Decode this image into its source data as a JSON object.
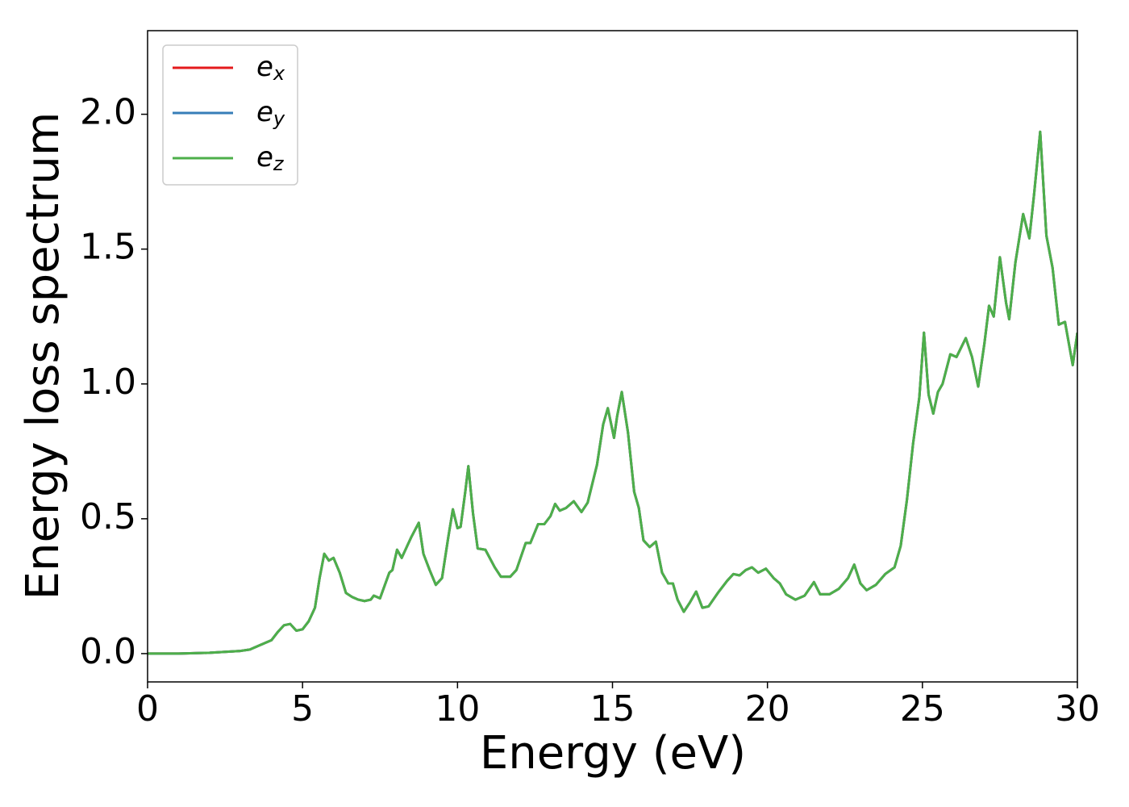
{
  "chart_data": {
    "type": "line",
    "xlabel": "Energy (eV)",
    "ylabel": "Energy loss spectrum",
    "x": [
      0,
      1,
      2,
      3,
      3.3,
      3.6,
      4.0,
      4.2,
      4.4,
      4.6,
      4.8,
      5.0,
      5.2,
      5.4,
      5.55,
      5.7,
      5.85,
      6.0,
      6.2,
      6.4,
      6.6,
      6.8,
      7.0,
      7.2,
      7.3,
      7.5,
      7.8,
      7.9,
      8.05,
      8.2,
      8.5,
      8.75,
      8.9,
      9.1,
      9.3,
      9.5,
      9.7,
      9.85,
      10.0,
      10.1,
      10.25,
      10.35,
      10.5,
      10.65,
      10.9,
      11.2,
      11.4,
      11.7,
      11.9,
      12.2,
      12.35,
      12.6,
      12.8,
      13.0,
      13.15,
      13.3,
      13.5,
      13.75,
      14.0,
      14.2,
      14.5,
      14.7,
      14.85,
      15.05,
      15.15,
      15.3,
      15.5,
      15.7,
      15.85,
      16.0,
      16.2,
      16.4,
      16.6,
      16.8,
      16.95,
      17.1,
      17.3,
      17.5,
      17.7,
      17.9,
      18.1,
      18.4,
      18.7,
      18.9,
      19.1,
      19.3,
      19.5,
      19.7,
      19.95,
      20.2,
      20.4,
      20.6,
      20.9,
      21.2,
      21.5,
      21.7,
      22.0,
      22.3,
      22.6,
      22.8,
      23.0,
      23.2,
      23.5,
      23.8,
      24.1,
      24.3,
      24.5,
      24.7,
      24.9,
      25.05,
      25.2,
      25.35,
      25.5,
      25.65,
      25.9,
      26.1,
      26.4,
      26.6,
      26.8,
      27.0,
      27.15,
      27.3,
      27.5,
      27.7,
      27.8,
      28.0,
      28.25,
      28.45,
      28.6,
      28.8,
      29.0,
      29.2,
      29.4,
      29.6,
      29.85,
      30.0
    ],
    "series": [
      {
        "name": "e_x",
        "color": "#e41a1c",
        "values": [
          0,
          0,
          0.003,
          0.01,
          0.015,
          0.03,
          0.05,
          0.08,
          0.105,
          0.11,
          0.085,
          0.09,
          0.12,
          0.17,
          0.28,
          0.37,
          0.345,
          0.355,
          0.3,
          0.225,
          0.21,
          0.2,
          0.195,
          0.2,
          0.215,
          0.205,
          0.3,
          0.31,
          0.385,
          0.355,
          0.43,
          0.485,
          0.37,
          0.31,
          0.255,
          0.28,
          0.43,
          0.535,
          0.465,
          0.47,
          0.6,
          0.695,
          0.52,
          0.39,
          0.385,
          0.32,
          0.285,
          0.285,
          0.31,
          0.41,
          0.41,
          0.48,
          0.48,
          0.51,
          0.555,
          0.53,
          0.54,
          0.565,
          0.525,
          0.56,
          0.7,
          0.85,
          0.91,
          0.8,
          0.88,
          0.97,
          0.82,
          0.6,
          0.54,
          0.42,
          0.395,
          0.415,
          0.3,
          0.26,
          0.26,
          0.2,
          0.155,
          0.19,
          0.23,
          0.17,
          0.175,
          0.225,
          0.27,
          0.295,
          0.29,
          0.31,
          0.32,
          0.3,
          0.315,
          0.28,
          0.26,
          0.22,
          0.2,
          0.215,
          0.265,
          0.22,
          0.22,
          0.24,
          0.28,
          0.33,
          0.26,
          0.235,
          0.255,
          0.295,
          0.32,
          0.4,
          0.57,
          0.78,
          0.95,
          1.19,
          0.96,
          0.89,
          0.97,
          1.0,
          1.11,
          1.1,
          1.17,
          1.1,
          0.99,
          1.15,
          1.29,
          1.25,
          1.47,
          1.3,
          1.24,
          1.45,
          1.63,
          1.54,
          1.7,
          1.935,
          1.55,
          1.43,
          1.22,
          1.23,
          1.07,
          1.19
        ]
      },
      {
        "name": "e_y",
        "color": "#377eb8",
        "values": [
          0,
          0,
          0.003,
          0.01,
          0.015,
          0.03,
          0.05,
          0.08,
          0.105,
          0.11,
          0.085,
          0.09,
          0.12,
          0.17,
          0.28,
          0.37,
          0.345,
          0.355,
          0.3,
          0.225,
          0.21,
          0.2,
          0.195,
          0.2,
          0.215,
          0.205,
          0.3,
          0.31,
          0.385,
          0.355,
          0.43,
          0.485,
          0.37,
          0.31,
          0.255,
          0.28,
          0.43,
          0.535,
          0.465,
          0.47,
          0.6,
          0.695,
          0.52,
          0.39,
          0.385,
          0.32,
          0.285,
          0.285,
          0.31,
          0.41,
          0.41,
          0.48,
          0.48,
          0.51,
          0.555,
          0.53,
          0.54,
          0.565,
          0.525,
          0.56,
          0.7,
          0.85,
          0.91,
          0.8,
          0.88,
          0.97,
          0.82,
          0.6,
          0.54,
          0.42,
          0.395,
          0.415,
          0.3,
          0.26,
          0.26,
          0.2,
          0.155,
          0.19,
          0.23,
          0.17,
          0.175,
          0.225,
          0.27,
          0.295,
          0.29,
          0.31,
          0.32,
          0.3,
          0.315,
          0.28,
          0.26,
          0.22,
          0.2,
          0.215,
          0.265,
          0.22,
          0.22,
          0.24,
          0.28,
          0.33,
          0.26,
          0.235,
          0.255,
          0.295,
          0.32,
          0.4,
          0.57,
          0.78,
          0.95,
          1.19,
          0.96,
          0.89,
          0.97,
          1.0,
          1.11,
          1.1,
          1.17,
          1.1,
          0.99,
          1.15,
          1.29,
          1.25,
          1.47,
          1.3,
          1.24,
          1.45,
          1.63,
          1.54,
          1.7,
          1.935,
          1.55,
          1.43,
          1.22,
          1.23,
          1.07,
          1.19
        ]
      },
      {
        "name": "e_z",
        "color": "#4daf4a",
        "values": [
          0,
          0,
          0.003,
          0.01,
          0.015,
          0.03,
          0.05,
          0.08,
          0.105,
          0.11,
          0.085,
          0.09,
          0.12,
          0.17,
          0.28,
          0.37,
          0.345,
          0.355,
          0.3,
          0.225,
          0.21,
          0.2,
          0.195,
          0.2,
          0.215,
          0.205,
          0.3,
          0.31,
          0.385,
          0.355,
          0.43,
          0.485,
          0.37,
          0.31,
          0.255,
          0.28,
          0.43,
          0.535,
          0.465,
          0.47,
          0.6,
          0.695,
          0.52,
          0.39,
          0.385,
          0.32,
          0.285,
          0.285,
          0.31,
          0.41,
          0.41,
          0.48,
          0.48,
          0.51,
          0.555,
          0.53,
          0.54,
          0.565,
          0.525,
          0.56,
          0.7,
          0.85,
          0.91,
          0.8,
          0.88,
          0.97,
          0.82,
          0.6,
          0.54,
          0.42,
          0.395,
          0.415,
          0.3,
          0.26,
          0.26,
          0.2,
          0.155,
          0.19,
          0.23,
          0.17,
          0.175,
          0.225,
          0.27,
          0.295,
          0.29,
          0.31,
          0.32,
          0.3,
          0.315,
          0.28,
          0.26,
          0.22,
          0.2,
          0.215,
          0.265,
          0.22,
          0.22,
          0.24,
          0.28,
          0.33,
          0.26,
          0.235,
          0.255,
          0.295,
          0.32,
          0.4,
          0.57,
          0.78,
          0.95,
          1.19,
          0.96,
          0.89,
          0.97,
          1.0,
          1.11,
          1.1,
          1.17,
          1.1,
          0.99,
          1.15,
          1.29,
          1.25,
          1.47,
          1.3,
          1.24,
          1.45,
          1.63,
          1.54,
          1.7,
          1.935,
          1.55,
          1.43,
          1.22,
          1.23,
          1.07,
          1.19
        ]
      }
    ],
    "xlim": [
      0,
      30
    ],
    "xticks": [
      0,
      5,
      10,
      15,
      20,
      25,
      30
    ],
    "ylim": [
      -0.105,
      2.31
    ],
    "yticks": [
      {
        "value": 0,
        "label": "0.0"
      },
      0.5,
      {
        "value": 1,
        "label": "1.0"
      },
      1.5,
      {
        "value": 2,
        "label": "2.0"
      }
    ],
    "grid": false,
    "legend": "upper left"
  }
}
